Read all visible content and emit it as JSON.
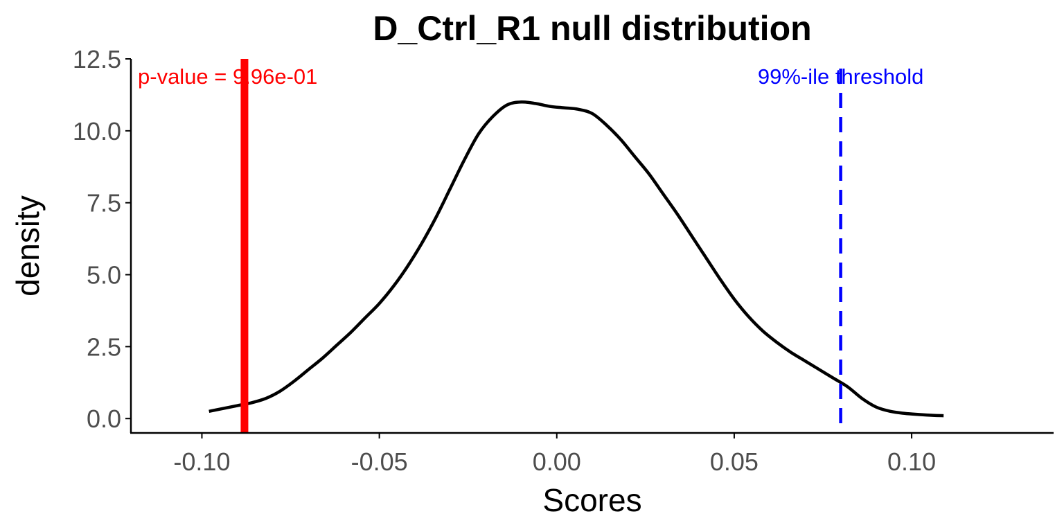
{
  "colors": {
    "density_line": "#000000",
    "observed_line": "#ff0000",
    "threshold_line": "#0000ff",
    "axis": "#000000",
    "tick_text": "#4d4d4d"
  },
  "chart_data": {
    "type": "line",
    "title": "D_Ctrl_R1 null distribution",
    "xlabel": "Scores",
    "ylabel": "density",
    "xlim": [
      -0.12,
      0.14
    ],
    "ylim": [
      -0.5,
      12.5
    ],
    "xticks": [
      -0.1,
      -0.05,
      0.0,
      0.05,
      0.1
    ],
    "xtick_labels": [
      "-0.10",
      "-0.05",
      "0.00",
      "0.05",
      "0.10"
    ],
    "yticks": [
      0.0,
      2.5,
      5.0,
      7.5,
      10.0,
      12.5
    ],
    "ytick_labels": [
      "0.0",
      "2.5",
      "5.0",
      "7.5",
      "10.0",
      "12.5"
    ],
    "grid": false,
    "legend": "none",
    "series": [
      {
        "x": [
          -0.098,
          -0.094,
          -0.09,
          -0.086,
          -0.082,
          -0.078,
          -0.074,
          -0.07,
          -0.066,
          -0.062,
          -0.058,
          -0.054,
          -0.05,
          -0.046,
          -0.042,
          -0.038,
          -0.034,
          -0.03,
          -0.026,
          -0.022,
          -0.018,
          -0.014,
          -0.01,
          -0.006,
          -0.002,
          0.002,
          0.006,
          0.01,
          0.014,
          0.018,
          0.022,
          0.026,
          0.03,
          0.034,
          0.038,
          0.042,
          0.046,
          0.05,
          0.054,
          0.058,
          0.062,
          0.066,
          0.07,
          0.074,
          0.078,
          0.082,
          0.086,
          0.09,
          0.094,
          0.098,
          0.102,
          0.106,
          0.109
        ],
        "y": [
          0.25,
          0.35,
          0.45,
          0.55,
          0.7,
          0.95,
          1.3,
          1.7,
          2.1,
          2.55,
          3.0,
          3.5,
          4.0,
          4.6,
          5.3,
          6.1,
          7.0,
          8.0,
          9.0,
          9.9,
          10.5,
          10.9,
          11.0,
          10.95,
          10.85,
          10.8,
          10.75,
          10.6,
          10.2,
          9.7,
          9.1,
          8.5,
          7.8,
          7.1,
          6.35,
          5.6,
          4.85,
          4.15,
          3.55,
          3.05,
          2.65,
          2.3,
          2.0,
          1.7,
          1.4,
          1.1,
          0.7,
          0.4,
          0.25,
          0.18,
          0.14,
          0.11,
          0.1
        ]
      }
    ],
    "observed_score": -0.088,
    "threshold_score": 0.08,
    "annotations": {
      "pvalue_text": "p-value = 9.96e-01",
      "threshold_text": "99%-ile threshold"
    }
  }
}
